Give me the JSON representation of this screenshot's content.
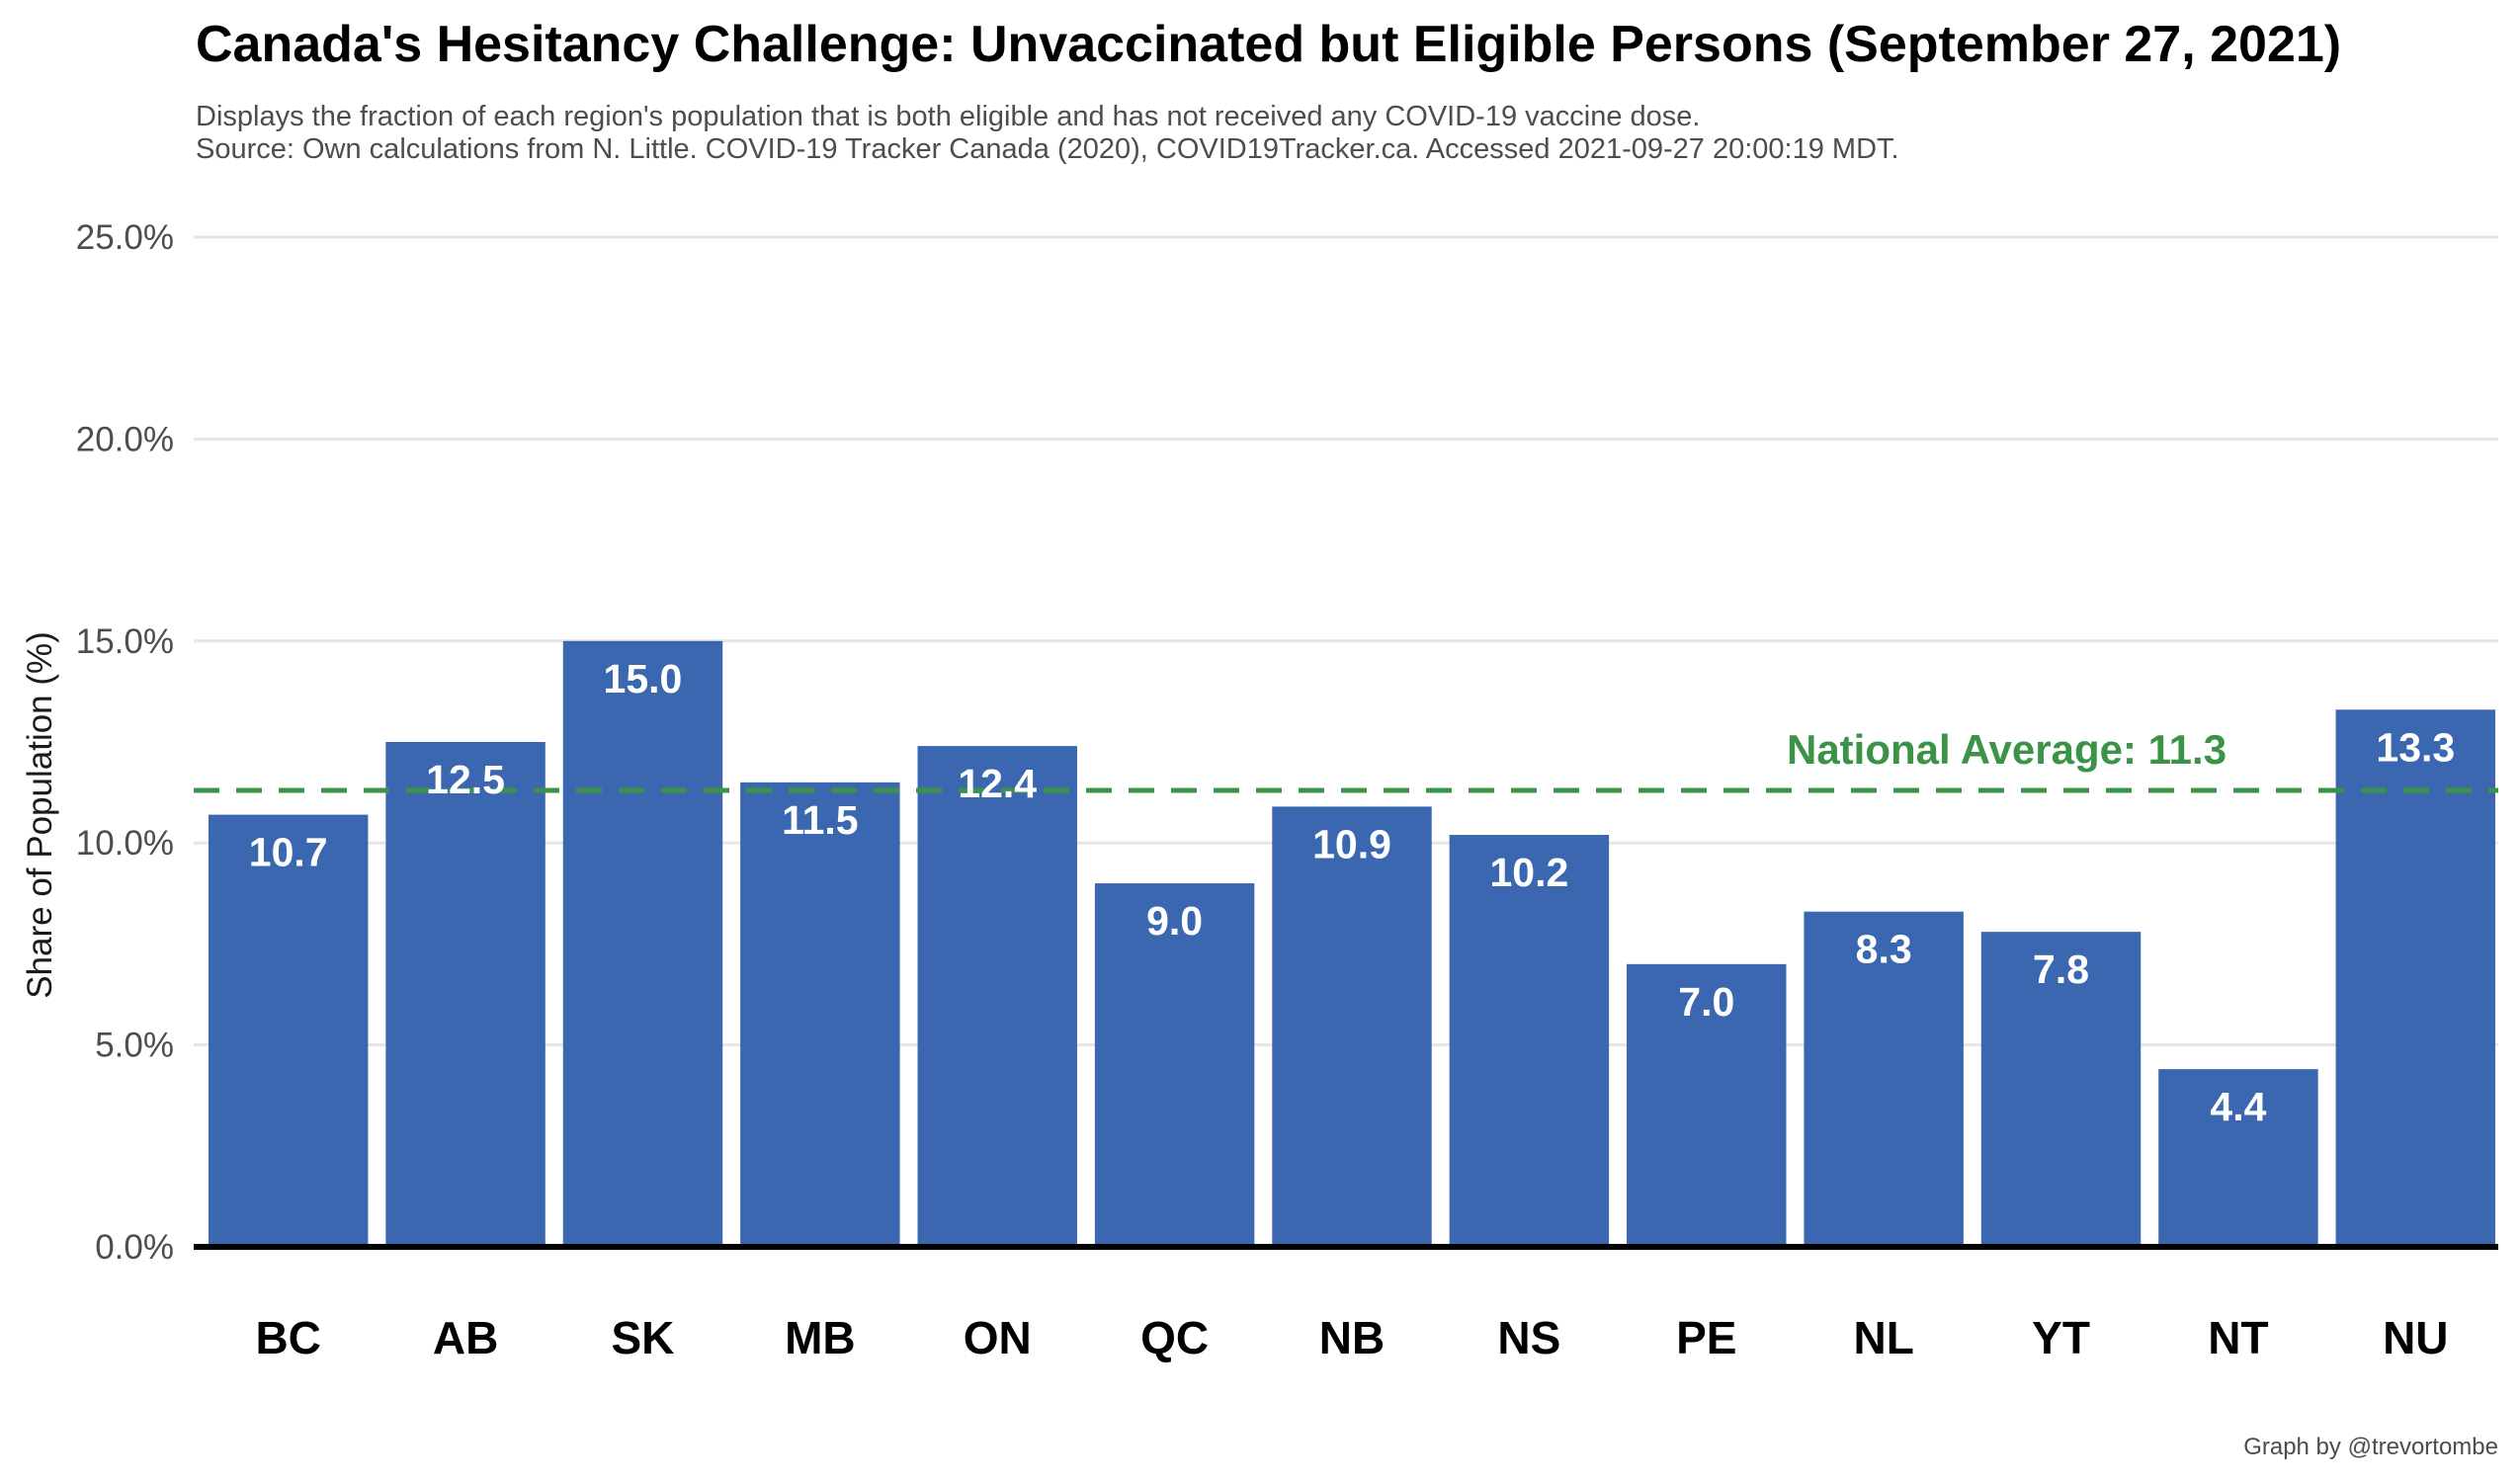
{
  "chart_data": {
    "type": "bar",
    "title": "Canada's Hesitancy Challenge: Unvaccinated but Eligible Persons (September 27, 2021)",
    "subtitle_lines": [
      "Displays the fraction of each region's population that is both eligible and has not received any COVID-19 vaccine dose.",
      "Source: Own calculations from N. Little. COVID-19 Tracker Canada (2020), COVID19Tracker.ca. Accessed 2021-09-27 20:00:19 MDT."
    ],
    "caption": "Graph by @trevortombe",
    "ylabel": "Share of Population (%)",
    "xlabel": "",
    "ylim": [
      0,
      25
    ],
    "y_ticks": [
      0,
      5,
      10,
      15,
      20,
      25
    ],
    "y_tick_labels": [
      "0.0%",
      "5.0%",
      "10.0%",
      "15.0%",
      "20.0%",
      "25.0%"
    ],
    "categories": [
      "BC",
      "AB",
      "SK",
      "MB",
      "ON",
      "QC",
      "NB",
      "NS",
      "PE",
      "NL",
      "YT",
      "NT",
      "NU"
    ],
    "values": [
      10.7,
      12.5,
      15.0,
      11.5,
      12.4,
      9.0,
      10.9,
      10.2,
      7.0,
      8.3,
      7.8,
      4.4,
      13.3
    ],
    "value_labels": [
      "10.7",
      "12.5",
      "15.0",
      "11.5",
      "12.4",
      "9.0",
      "10.9",
      "10.2",
      "7.0",
      "8.3",
      "7.8",
      "4.4",
      "13.3"
    ],
    "reference_line": {
      "value": 11.3,
      "label": "National Average: 11.3",
      "style": "dashed"
    },
    "grid": true,
    "legend": "none",
    "colors": {
      "bar": "#3a67b0",
      "reference": "#3b9347",
      "grid": "#e6e6e6",
      "baseline": "#000000"
    }
  }
}
